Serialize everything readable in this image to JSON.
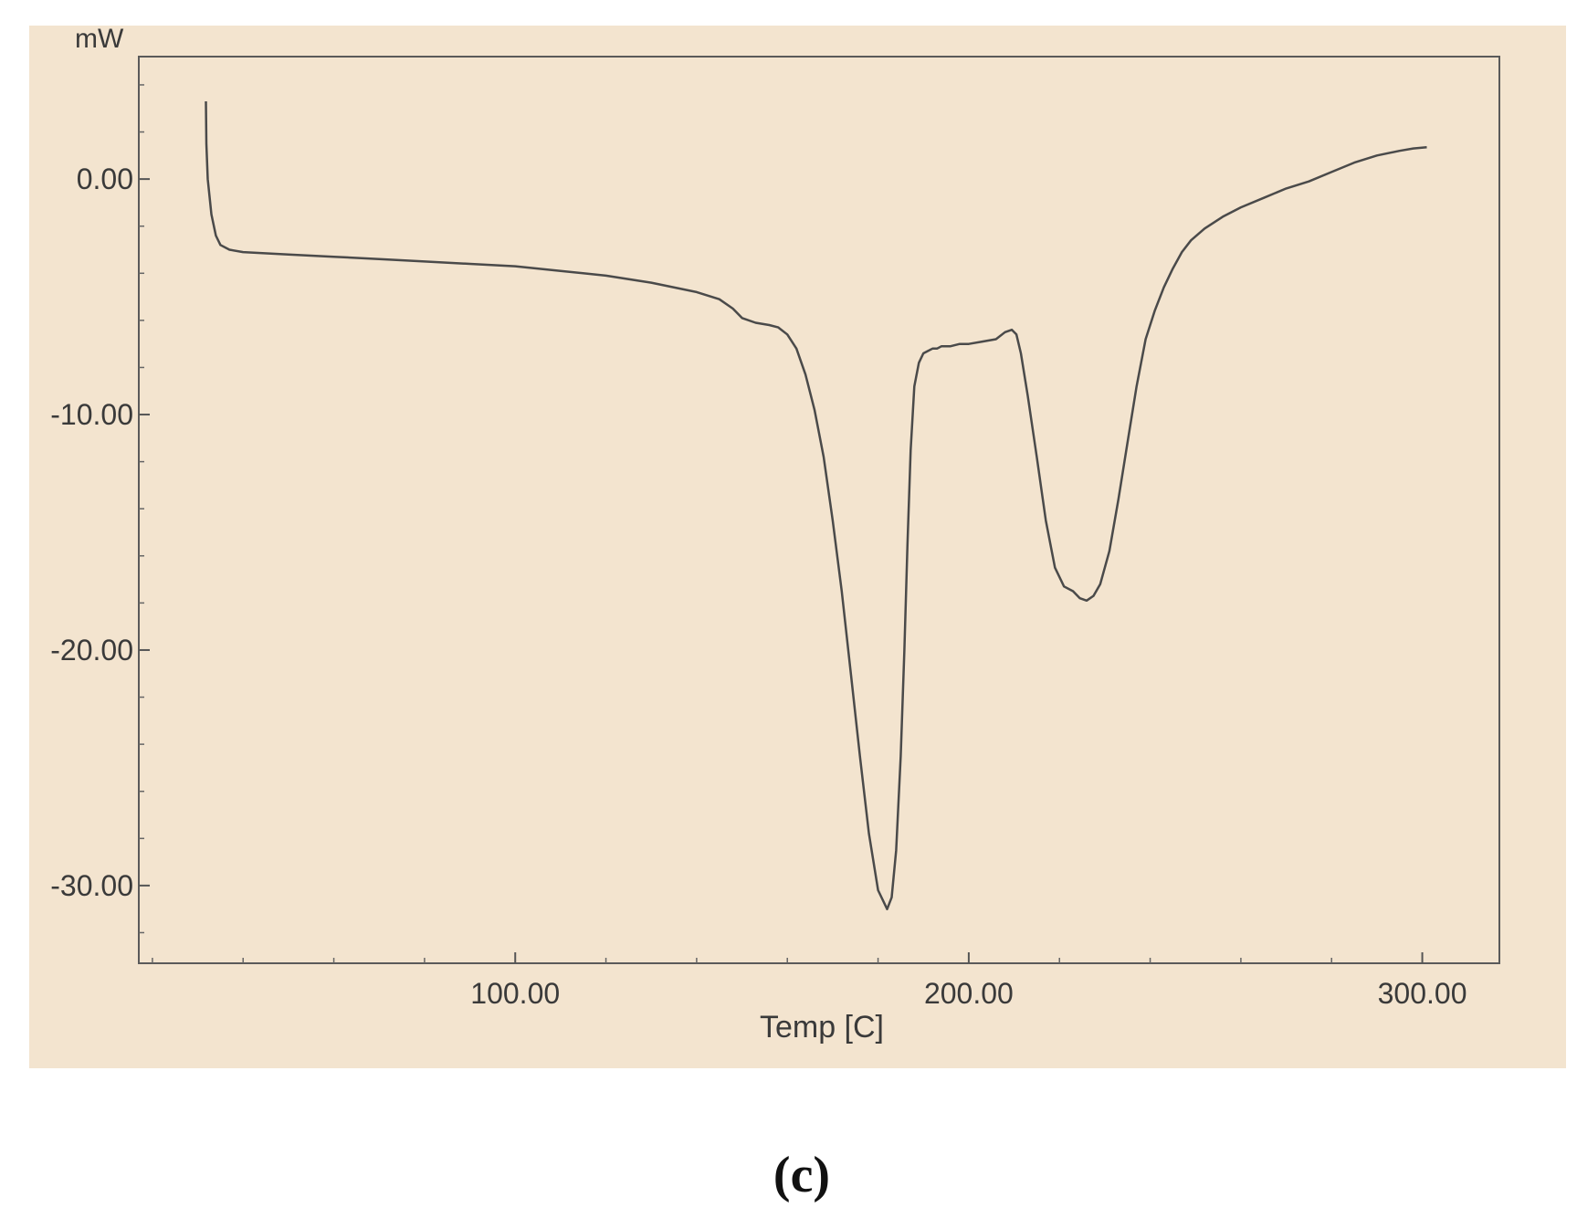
{
  "chart_data": {
    "type": "line",
    "ylabel": "mW",
    "xlabel": "Temp [C]",
    "xlim": [
      17,
      317
    ],
    "ylim": [
      -33.3,
      5.2
    ],
    "x_ticks": [
      100,
      200,
      300
    ],
    "x_tick_labels": [
      "100.00",
      "200.00",
      "300.00"
    ],
    "y_ticks": [
      0,
      -10,
      -20,
      -30
    ],
    "y_tick_labels": [
      "0.00",
      "-10.00",
      "-20.00",
      "-30.00"
    ],
    "grid": false,
    "series": [
      {
        "x": [
          31.8,
          31.9,
          32.2,
          33,
          34,
          35,
          37,
          40,
          50,
          60,
          70,
          80,
          90,
          100,
          110,
          120,
          130,
          140,
          145,
          148,
          150,
          153,
          156,
          158,
          160,
          162,
          164,
          166,
          168,
          170,
          172,
          174,
          176,
          178,
          180,
          182,
          183,
          184,
          185,
          185.8,
          186.5,
          187.2,
          188,
          189,
          190,
          191,
          192,
          193,
          194,
          196,
          198,
          200,
          203,
          206,
          208,
          209.5,
          210.5,
          211.5,
          213,
          215,
          217,
          219,
          221,
          223,
          224.5,
          226,
          227.5,
          229,
          231,
          233,
          235,
          237,
          239,
          241,
          243,
          245,
          247,
          249,
          252,
          256,
          260,
          265,
          270,
          275,
          280,
          285,
          290,
          295,
          298,
          301
        ],
        "y": [
          3.3,
          1.5,
          0,
          -1.5,
          -2.4,
          -2.8,
          -3,
          -3.1,
          -3.2,
          -3.3,
          -3.4,
          -3.5,
          -3.6,
          -3.7,
          -3.9,
          -4.1,
          -4.4,
          -4.8,
          -5.1,
          -5.5,
          -5.9,
          -6.1,
          -6.2,
          -6.3,
          -6.6,
          -7.2,
          -8.3,
          -9.8,
          -11.8,
          -14.5,
          -17.5,
          -21,
          -24.5,
          -27.8,
          -30.2,
          -31,
          -30.5,
          -28.5,
          -24.5,
          -20,
          -15.5,
          -11.5,
          -8.8,
          -7.8,
          -7.4,
          -7.3,
          -7.2,
          -7.2,
          -7.1,
          -7.1,
          -7,
          -7,
          -6.9,
          -6.8,
          -6.5,
          -6.4,
          -6.6,
          -7.4,
          -9.2,
          -11.8,
          -14.5,
          -16.5,
          -17.3,
          -17.5,
          -17.8,
          -17.9,
          -17.7,
          -17.2,
          -15.8,
          -13.6,
          -11.2,
          -8.8,
          -6.8,
          -5.6,
          -4.6,
          -3.8,
          -3.1,
          -2.6,
          -2.1,
          -1.6,
          -1.2,
          -0.8,
          -0.4,
          -0.1,
          0.3,
          0.7,
          1.0,
          1.2,
          1.3,
          1.35
        ]
      }
    ]
  },
  "figure": {
    "caption": "(c)"
  }
}
